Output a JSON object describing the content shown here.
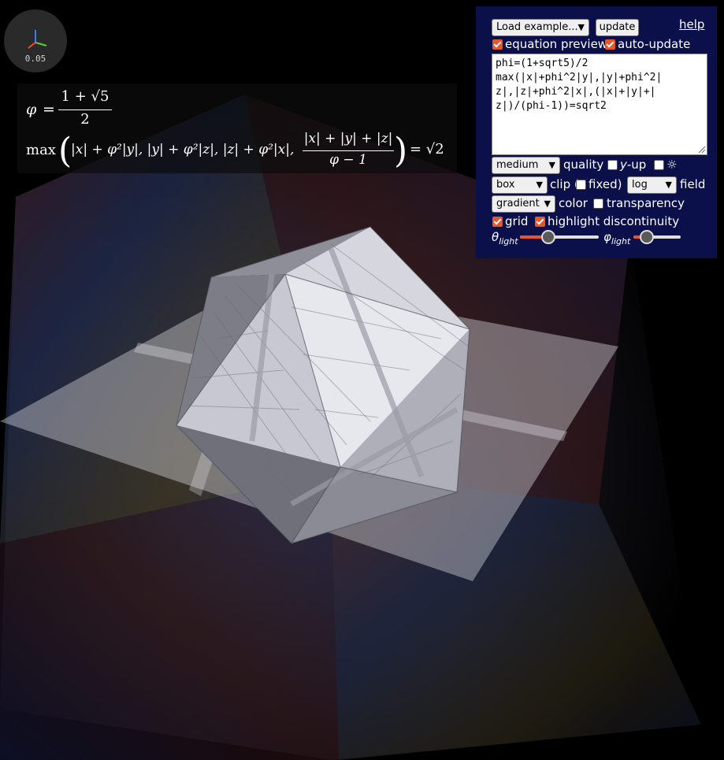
{
  "axis_widget": {
    "scale": "0.05"
  },
  "equation_preview": {
    "line1": {
      "lhs": "φ",
      "eq": "=",
      "num": "1 + √5",
      "den": "2"
    },
    "line2": {
      "fn": "max",
      "terms": "|x| + φ²|y|, |y| + φ²|z|, |z| + φ²|x|,",
      "num": "|x| + |y| + |z|",
      "den": "φ − 1",
      "rhs": "= √2"
    }
  },
  "panel": {
    "example_select": "Load example...",
    "update_button": "update",
    "help_link": "help",
    "equation_preview_label": "equation preview",
    "equation_preview_checked": true,
    "auto_update_label": "auto-update",
    "auto_update_checked": true,
    "equation_text": "phi=(1+sqrt5)/2\nmax(|x|+phi^2|y|,|y|+phi^2|\nz|,|z|+phi^2|x|,(|x|+|y|+|\nz|)/(phi-1))=sqrt2",
    "quality_select": "medium",
    "quality_label": "quality",
    "y_up_label_y": "y",
    "y_up_label_rest": "-up",
    "y_up_checked": false,
    "sun_label": "☼",
    "sun_checked": false,
    "clip_select": "box",
    "clip_label": "clip (",
    "fixed_checked": false,
    "fixed_label": "fixed)",
    "field_select": "log",
    "field_label": "field",
    "color_select": "gradient",
    "color_label": "color",
    "transparency_checked": false,
    "transparency_label": "transparency",
    "grid_checked": true,
    "grid_label": "grid",
    "highlight_checked": true,
    "highlight_label": "highlight discontinuity",
    "theta_light": {
      "symbol": "θ",
      "sub": "light",
      "value": 0.36
    },
    "phi_light": {
      "symbol": "φ",
      "sub": "light",
      "value": 0.28
    }
  },
  "colors": {
    "panel_bg": "#0b0f4a",
    "accent": "#e8552a",
    "surface": "#c9cad4"
  }
}
